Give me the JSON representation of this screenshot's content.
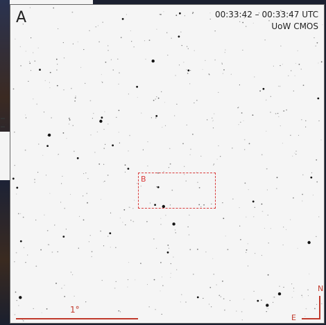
{
  "panel": {
    "label": "A",
    "time_range": "00:33:42 – 00:33:47 UTC",
    "camera": "UoW CMOS",
    "inset_label": "B",
    "scale_label": "1°",
    "compass_north": "N",
    "compass_east": "E"
  },
  "colors": {
    "background": "#f5f5f5",
    "annotation": "#c0392b",
    "stars": "#111111"
  },
  "icons": {
    "compass": "north-east-compass-icon"
  }
}
